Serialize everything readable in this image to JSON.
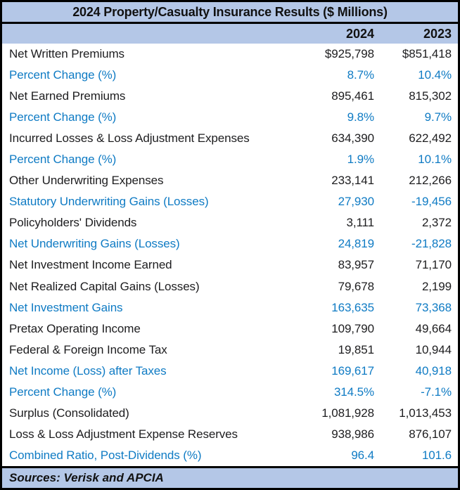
{
  "chart_data": {
    "type": "table",
    "title": "2024 Property/Casualty Insurance Results ($ Millions)",
    "columns": [
      "2024",
      "2023"
    ],
    "rows": [
      {
        "label": "Net Written Premiums",
        "values": [
          "$925,798",
          "$851,418"
        ],
        "highlight": false
      },
      {
        "label": "Percent Change (%)",
        "values": [
          "8.7%",
          "10.4%"
        ],
        "highlight": true
      },
      {
        "label": "Net Earned Premiums",
        "values": [
          "895,461",
          "815,302"
        ],
        "highlight": false
      },
      {
        "label": "Percent Change (%)",
        "values": [
          "9.8%",
          "9.7%"
        ],
        "highlight": true
      },
      {
        "label": "Incurred Losses & Loss Adjustment Expenses",
        "values": [
          "634,390",
          "622,492"
        ],
        "highlight": false
      },
      {
        "label": "Percent Change (%)",
        "values": [
          "1.9%",
          "10.1%"
        ],
        "highlight": true
      },
      {
        "label": "Other Underwriting Expenses",
        "values": [
          "233,141",
          "212,266"
        ],
        "highlight": false
      },
      {
        "label": "Statutory Underwriting Gains (Losses)",
        "values": [
          "27,930",
          "-19,456"
        ],
        "highlight": true
      },
      {
        "label": "Policyholders' Dividends",
        "values": [
          "3,111",
          "2,372"
        ],
        "highlight": false
      },
      {
        "label": "Net Underwriting Gains (Losses)",
        "values": [
          "24,819",
          "-21,828"
        ],
        "highlight": true
      },
      {
        "label": "Net Investment Income Earned",
        "values": [
          "83,957",
          "71,170"
        ],
        "highlight": false
      },
      {
        "label": "Net Realized Capital Gains (Losses)",
        "values": [
          "79,678",
          "2,199"
        ],
        "highlight": false
      },
      {
        "label": "Net Investment Gains",
        "values": [
          "163,635",
          "73,368"
        ],
        "highlight": true
      },
      {
        "label": "Pretax Operating Income",
        "values": [
          "109,790",
          "49,664"
        ],
        "highlight": false
      },
      {
        "label": "Federal & Foreign Income Tax",
        "values": [
          "19,851",
          "10,944"
        ],
        "highlight": false
      },
      {
        "label": "Net Income (Loss) after Taxes",
        "values": [
          "169,617",
          "40,918"
        ],
        "highlight": true
      },
      {
        "label": "Percent Change (%)",
        "values": [
          "314.5%",
          "-7.1%"
        ],
        "highlight": true
      },
      {
        "label": "Surplus (Consolidated)",
        "values": [
          "1,081,928",
          "1,013,453"
        ],
        "highlight": false
      },
      {
        "label": "Loss & Loss Adjustment Expense Reserves",
        "values": [
          "938,986",
          "876,107"
        ],
        "highlight": false
      },
      {
        "label": "Combined Ratio, Post-Dividends (%)",
        "values": [
          "96.4",
          "101.6"
        ],
        "highlight": true
      }
    ],
    "footer": "Sources: Verisk and APCIA",
    "legend_position": "none",
    "grid": false
  },
  "colors": {
    "header_bg": "#b4c7e7",
    "highlight_text": "#0f7bc4",
    "body_text": "#1d1d1f",
    "border": "#000000"
  }
}
